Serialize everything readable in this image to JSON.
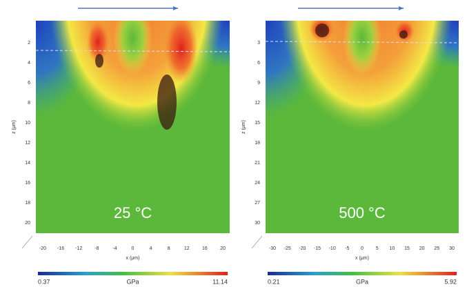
{
  "panels": [
    {
      "temperature": "25 °C",
      "x_label": "x (μm)",
      "y_label": "z (μm)",
      "xticks": [
        -20,
        -16,
        -12,
        -8,
        -4,
        0,
        4,
        8,
        12,
        16,
        20
      ],
      "yticks": [
        2,
        4,
        6,
        8,
        10,
        12,
        14,
        16,
        18,
        20
      ],
      "colorbar": {
        "min": "0.37",
        "unit": "GPa",
        "max": "11.14"
      }
    },
    {
      "temperature": "500 °C",
      "x_label": "x (μm)",
      "y_label": "z (μm)",
      "xticks": [
        -30,
        -25,
        -20,
        -15,
        -10,
        -5,
        0,
        5,
        10,
        15,
        20,
        25,
        30
      ],
      "yticks": [
        3,
        6,
        9,
        12,
        15,
        18,
        21,
        24,
        27,
        30
      ],
      "colorbar": {
        "min": "0.21",
        "unit": "GPa",
        "max": "5.92"
      }
    }
  ]
}
